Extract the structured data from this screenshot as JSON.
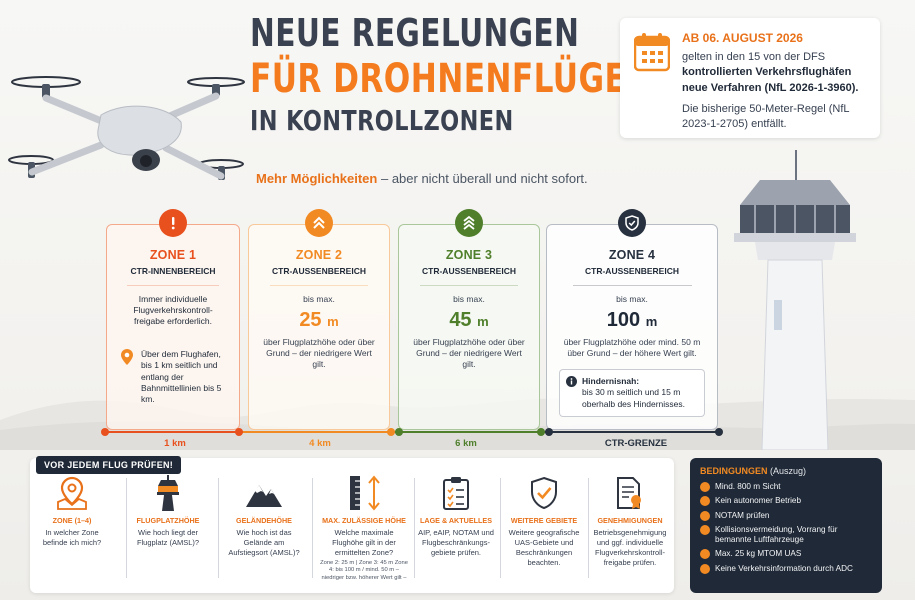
{
  "title": {
    "line1": "NEUE REGELUNGEN",
    "line2": "FÜR DROHNENFLÜGE",
    "line3": "IN KONTROLLZONEN"
  },
  "tagline": {
    "highlight": "Mehr Möglichkeiten",
    "rest": " – aber nicht überall und nicht sofort."
  },
  "info_card": {
    "date": "AB 06. AUGUST 2026",
    "text_a": "gelten in den 15 von der DFS",
    "text_b": "kontrollierten Verkehrsflughäfen neue Verfahren (NfL 2026-1-3960).",
    "text_c": "Die bisherige 50-Meter-Regel (NfL 2023-1-2705) entfällt."
  },
  "zones": [
    {
      "name": "ZONE 1",
      "subtitle": "CTR-INNENBEREICH",
      "rule": "Immer individuelle Flugverkehrskontroll-freigabe erforderlich.",
      "location": "Über dem Flughafen, bis 1 km seitlich und entlang der Bahnmittellinien bis 5 km."
    },
    {
      "name": "ZONE 2",
      "subtitle": "CTR-AUSSENBEREICH",
      "prefix": "bis max.",
      "value": "25",
      "unit": "m",
      "note": "über Flugplatzhöhe oder über Grund – der niedrigere Wert gilt."
    },
    {
      "name": "ZONE 3",
      "subtitle": "CTR-AUSSENBEREICH",
      "prefix": "bis max.",
      "value": "45",
      "unit": "m",
      "note": "über Flugplatzhöhe oder über Grund – der niedrigere Wert gilt."
    },
    {
      "name": "ZONE 4",
      "subtitle": "CTR-AUSSENBEREICH",
      "prefix": "bis max.",
      "value": "100",
      "unit": "m",
      "note": "über Flugplatzhöhe oder mind. 50 m über Grund – der höhere Wert gilt.",
      "obstacle_title": "Hindernisnah:",
      "obstacle_text": "bis 30 m seitlich und 15 m oberhalb des Hindernisses."
    }
  ],
  "distances": {
    "d1": "1 km",
    "d2": "4 km",
    "d3": "6 km",
    "d4": "CTR-GRENZE"
  },
  "check": {
    "tag": "VOR JEDEM FLUG PRÜFEN!",
    "items": [
      {
        "label": "ZONE (1–4)",
        "text": "In welcher Zone befinde ich mich?",
        "icon": "map-pin-icon"
      },
      {
        "label": "FLUGPLATZHÖHE",
        "text": "Wie hoch liegt der Flugplatz (AMSL)?",
        "icon": "tower-icon"
      },
      {
        "label": "GELÄNDEHÖHE",
        "text": "Wie hoch ist das Gelände am Aufstiegsort (AMSL)?",
        "icon": "mountain-icon"
      },
      {
        "label": "MAX. ZULÄSSIGE HÖHE",
        "text": "Welche maximale Flughöhe gilt in der ermittelten Zone?",
        "note": "Zone 2: 25 m | Zone 3: 45 m Zone 4: bis 100 m / mind. 50 m – niedriger bzw. höherer Wert gilt –",
        "icon": "height-icon"
      },
      {
        "label": "LAGE & AKTUELLES",
        "text": "AIP, eAIP, NOTAM und Flugbeschränkungs-gebiete prüfen.",
        "icon": "clipboard-icon"
      },
      {
        "label": "WEITERE GEBIETE",
        "text": "Weitere geografische UAS-Gebiete und Beschränkungen beachten.",
        "icon": "shield-check-icon"
      },
      {
        "label": "GENEHMIGUNGEN",
        "text": "Betriebsgenehmigung und ggf. individuelle Flugverkehrskontroll-freigabe prüfen.",
        "icon": "document-seal-icon"
      }
    ]
  },
  "conditions": {
    "title": "BEDINGUNGEN",
    "subtitle": "(Auszug)",
    "items": [
      "Mind. 800 m Sicht",
      "Kein autonomer Betrieb",
      "NOTAM prüfen",
      "Kollisionsvermeidung, Vorrang für bemannte Luftfahrzeuge",
      "Max. 25 kg MTOM UAS",
      "Keine Verkehrsinformation durch ADC"
    ]
  },
  "colors": {
    "orange": "#f28a23",
    "red": "#e8501e",
    "green": "#4f7f2b",
    "dark": "#27313f"
  }
}
